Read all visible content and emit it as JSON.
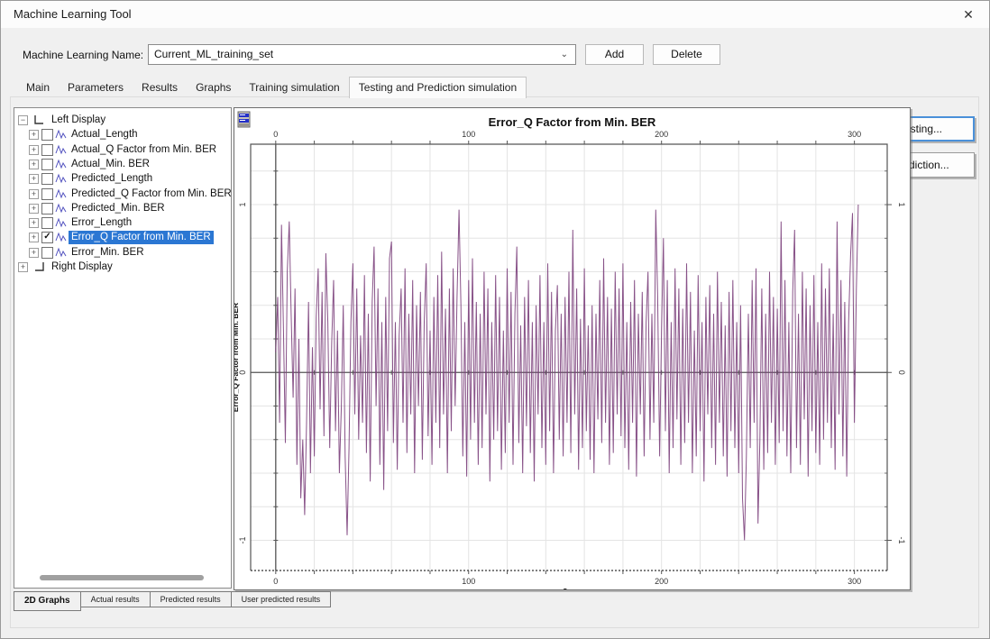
{
  "window": {
    "title": "Machine Learning Tool",
    "close_glyph": "✕"
  },
  "toolbar": {
    "name_label": "Machine Learning Name:",
    "name_value": "Current_ML_training_set",
    "combo_chevron": "⌄",
    "add_label": "Add",
    "delete_label": "Delete"
  },
  "tabs": {
    "items": [
      "Main",
      "Parameters",
      "Results",
      "Graphs",
      "Training simulation",
      "Testing and Prediction simulation"
    ],
    "active": "Testing and Prediction simulation"
  },
  "tree": {
    "left_root": {
      "label": "Left Display",
      "expanded": true
    },
    "right_root": {
      "label": "Right Display",
      "expanded": false
    },
    "items": [
      {
        "label": "Actual_Length",
        "checked": false,
        "selected": false
      },
      {
        "label": "Actual_Q Factor from Min. BER",
        "checked": false,
        "selected": false
      },
      {
        "label": "Actual_Min. BER",
        "checked": false,
        "selected": false
      },
      {
        "label": "Predicted_Length",
        "checked": false,
        "selected": false
      },
      {
        "label": "Predicted_Q Factor from Min. BER",
        "checked": false,
        "selected": false
      },
      {
        "label": "Predicted_Min. BER",
        "checked": false,
        "selected": false
      },
      {
        "label": "Error_Length",
        "checked": false,
        "selected": false
      },
      {
        "label": "Error_Q Factor from Min. BER",
        "checked": true,
        "selected": true
      },
      {
        "label": "Error_Min. BER",
        "checked": false,
        "selected": false
      }
    ]
  },
  "side_buttons": {
    "testing": "Testing...",
    "prediction": "Prediction..."
  },
  "bottom_tabs": {
    "items": [
      "2D Graphs",
      "Actual results",
      "Predicted results",
      "User predicted results"
    ],
    "active": "2D Graphs"
  },
  "colors": {
    "selection_blue": "#2b77d3",
    "focus_blue": "#4a90d9",
    "line_purple": "#7b3f7b",
    "grid_gray": "#e4e4e4",
    "axis_dark": "#555555",
    "tree_icon_blue": "#4f4fbe"
  },
  "chart_data": {
    "type": "line",
    "title": "Error_Q Factor from Min. BER",
    "ylabel": "Error_Q Factor from Min. BER",
    "xlabel": "2",
    "legend": "none",
    "grid": true,
    "xlim": [
      -13,
      317
    ],
    "ylim": [
      -1.18,
      1.36
    ],
    "x_ticks_major": [
      0,
      100,
      200,
      300
    ],
    "x_tick_minor_step": 20,
    "y_ticks_major": [
      1,
      0,
      -1
    ],
    "y_tick_minor_step": 0.2,
    "x_start": 0,
    "x_step": 1,
    "values": [
      0.12,
      0.45,
      -0.3,
      0.88,
      0.25,
      -0.42,
      0.6,
      0.9,
      0.35,
      -0.15,
      0.5,
      -0.55,
      0.2,
      -0.75,
      -0.4,
      -0.85,
      -0.3,
      0.42,
      -0.6,
      0.15,
      -0.5,
      0.33,
      0.62,
      -0.22,
      0.48,
      -0.38,
      0.71,
      0.3,
      -0.45,
      0.18,
      0.55,
      -0.35,
      0.25,
      -0.6,
      -0.2,
      0.4,
      -0.5,
      -0.97,
      -0.45,
      0.3,
      0.65,
      -0.25,
      0.5,
      -0.4,
      0.22,
      -0.3,
      0.58,
      -0.48,
      0.35,
      -0.65,
      0.42,
      0.75,
      -0.2,
      0.5,
      -0.55,
      0.3,
      -0.7,
      0.45,
      -0.35,
      0.68,
      0.78,
      -0.42,
      0.3,
      -0.58,
      0.22,
      0.5,
      -0.3,
      0.62,
      -0.48,
      0.35,
      -0.25,
      0.55,
      -0.6,
      0.4,
      -0.2,
      0.48,
      -0.52,
      0.3,
      0.65,
      -0.38,
      0.25,
      -0.55,
      0.45,
      -0.3,
      0.58,
      -0.45,
      0.72,
      -0.25,
      0.38,
      -0.6,
      0.5,
      -0.35,
      0.62,
      -0.2,
      0.45,
      0.97,
      0.4,
      -0.5,
      0.3,
      -0.62,
      0.55,
      -0.4,
      0.68,
      -0.3,
      0.42,
      -0.55,
      0.35,
      -0.45,
      0.6,
      -0.25,
      0.5,
      -0.65,
      0.3,
      -0.4,
      0.58,
      -0.35,
      0.45,
      -0.58,
      0.25,
      -0.48,
      0.62,
      -0.3,
      0.48,
      -0.55,
      0.35,
      0.75,
      -0.42,
      0.28,
      -0.6,
      0.45,
      -0.32,
      0.55,
      -0.48,
      0.3,
      -0.65,
      0.4,
      -0.25,
      0.58,
      -0.45,
      0.3,
      -0.55,
      0.65,
      -0.35,
      0.48,
      -0.6,
      0.25,
      0.52,
      -0.4,
      0.35,
      -0.5,
      0.45,
      -0.3,
      0.6,
      -0.48,
      0.85,
      -0.25,
      0.5,
      -0.58,
      0.32,
      -0.45,
      0.62,
      -0.35,
      0.28,
      -0.52,
      0.4,
      -0.6,
      0.35,
      -0.28,
      0.55,
      -0.42,
      0.68,
      -0.3,
      0.45,
      -0.55,
      0.38,
      -0.48,
      0.6,
      -0.25,
      0.5,
      -0.38,
      0.65,
      -0.45,
      0.3,
      -0.58,
      0.42,
      -0.3,
      0.55,
      -0.62,
      0.35,
      -0.25,
      0.48,
      -0.5,
      0.3,
      0.6,
      -0.4,
      0.35,
      -0.3,
      0.97,
      0.45,
      -0.5,
      0.25,
      0.8,
      -0.35,
      0.55,
      -0.6,
      0.3,
      -0.45,
      0.62,
      -0.28,
      0.5,
      -0.55,
      0.38,
      -0.42,
      0.65,
      -0.3,
      0.48,
      -0.6,
      0.25,
      -0.5,
      0.58,
      -0.35,
      0.3,
      -0.65,
      0.45,
      -0.25,
      0.52,
      -0.45,
      0.35,
      -0.55,
      0.6,
      -0.3,
      0.42,
      -0.5,
      0.28,
      -0.62,
      0.48,
      -0.35,
      0.55,
      -0.45,
      0.3,
      -0.6,
      0.4,
      -0.75,
      -1.0,
      -0.5,
      0.35,
      -0.45,
      0.55,
      -0.3,
      0.62,
      -0.9,
      -0.4,
      0.5,
      -0.58,
      0.35,
      -0.48,
      0.6,
      -0.3,
      0.45,
      -0.55,
      0.38,
      -0.42,
      0.9,
      -0.35,
      0.55,
      -0.5,
      0.3,
      -0.6,
      0.48,
      0.85,
      -0.45,
      0.35,
      -0.55,
      0.6,
      -0.28,
      0.5,
      -0.62,
      0.4,
      -0.35,
      0.58,
      -0.48,
      0.3,
      -0.55,
      0.65,
      -0.4,
      0.5,
      -0.3,
      0.62,
      -0.45,
      0.35,
      -0.58,
      0.9,
      -0.25,
      0.55,
      -0.5,
      0.42,
      -0.62,
      0.3,
      0.7,
      0.95,
      -0.3,
      0.5,
      1.0
    ]
  }
}
